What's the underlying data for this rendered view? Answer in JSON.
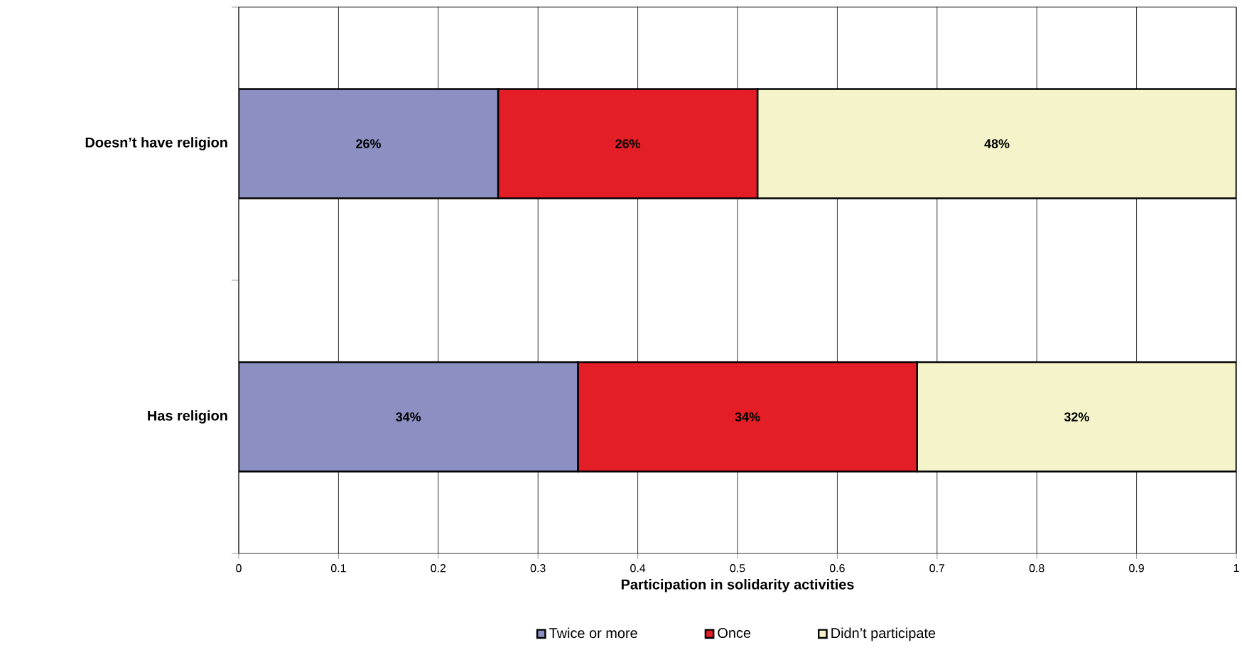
{
  "chart_data": {
    "type": "bar",
    "orientation": "horizontal",
    "stacked": true,
    "categories": [
      "Doesn’t have religion",
      "Has religion"
    ],
    "xlabel": "Participation in solidarity activities",
    "xlim": [
      0,
      1
    ],
    "xticks": [
      0,
      0.1,
      0.2,
      0.3,
      0.4,
      0.5,
      0.6,
      0.7,
      0.8,
      0.9,
      1
    ],
    "grid": "x",
    "legend": "bottom",
    "series": [
      {
        "name": "Twice or more",
        "color": "#8b8fc1",
        "values": [
          0.26,
          0.34
        ],
        "value_labels": [
          "26%",
          "34%"
        ]
      },
      {
        "name": "Once",
        "color": "#e31e26",
        "values": [
          0.26,
          0.34
        ],
        "value_labels": [
          "26%",
          "34%"
        ]
      },
      {
        "name": "Didn’t participate",
        "color": "#f5f3c9",
        "values": [
          0.48,
          0.32
        ],
        "value_labels": [
          "48%",
          "32%"
        ]
      }
    ]
  }
}
